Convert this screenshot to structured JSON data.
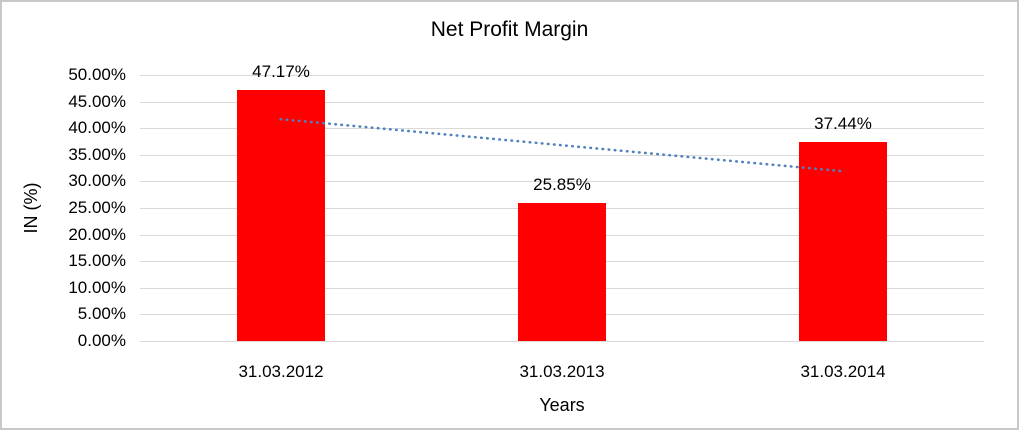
{
  "chart_data": {
    "type": "bar",
    "title": "Net Profit Margin",
    "xlabel": "Years",
    "ylabel": "IN (%)",
    "categories": [
      "31.03.2012",
      "31.03.2013",
      "31.03.2014"
    ],
    "values": [
      47.17,
      25.85,
      37.44
    ],
    "data_labels": [
      "47.17%",
      "25.85%",
      "37.44%"
    ],
    "ylim": [
      0,
      50
    ],
    "ytick_step": 5,
    "ytick_labels": [
      "0.00%",
      "5.00%",
      "10.00%",
      "15.00%",
      "20.00%",
      "25.00%",
      "30.00%",
      "35.00%",
      "40.00%",
      "45.00%",
      "50.00%"
    ],
    "grid": true,
    "legend": "none",
    "bar_color": "#ff0000",
    "gridline_color": "#d9d9d9",
    "border_color": "#c8c8c8",
    "text_color": "#000000",
    "trendline": {
      "type": "linear",
      "style": "dotted",
      "color": "#4f81bd",
      "start_value": 41.7,
      "end_value": 31.9
    }
  }
}
